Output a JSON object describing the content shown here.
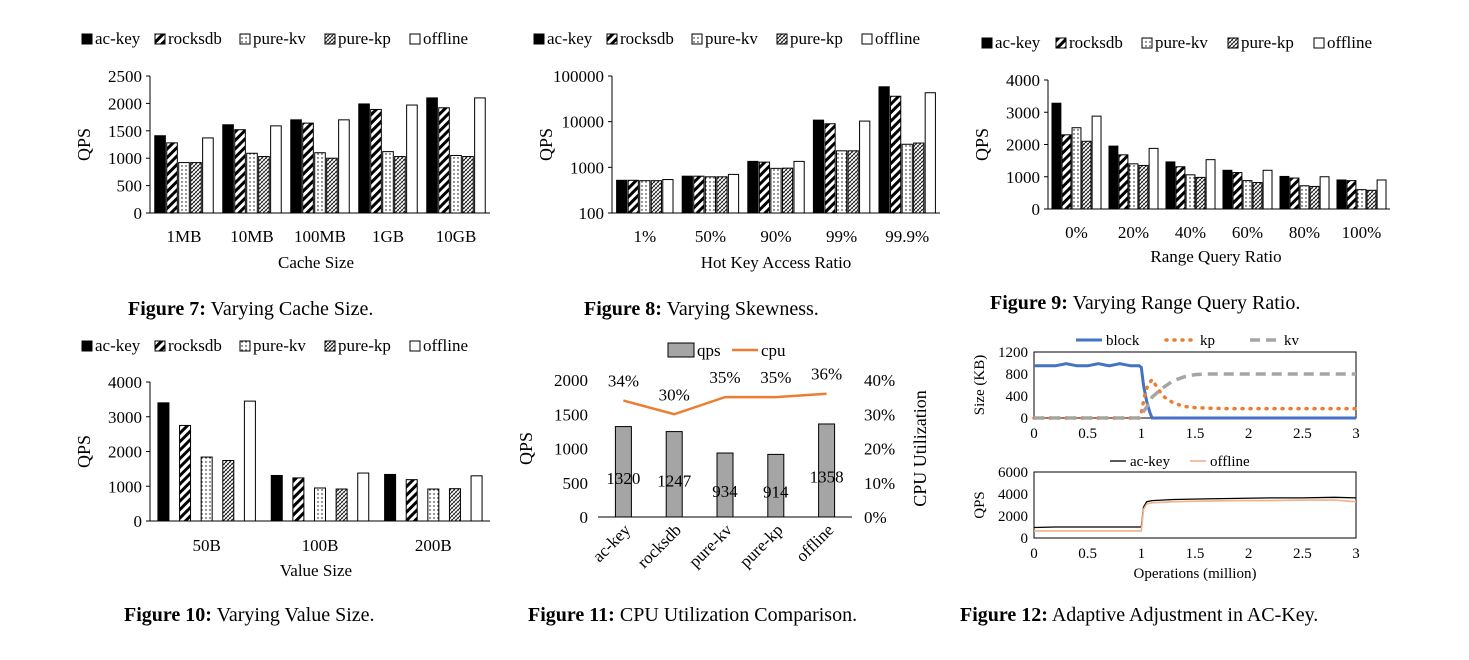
{
  "colors": {
    "black": "#000000",
    "block": "#4472C4",
    "kp": "#ED7D31",
    "kv": "#A5A5A5",
    "qps_bar": "#A5A5A5",
    "cpu": "#ED7D31",
    "offline": "#F4B183"
  },
  "captions": [
    {
      "fig": "Figure 7:",
      "text": " Varying Cache Size."
    },
    {
      "fig": "Figure 8:",
      "text": " Varying Skewness."
    },
    {
      "fig": "Figure 9:",
      "text": " Varying Range Query Ratio."
    },
    {
      "fig": "Figure 10:",
      "text": " Varying Value Size."
    },
    {
      "fig": "Figure 11:",
      "text": " CPU Utilization Comparison."
    },
    {
      "fig": "Figure 12:",
      "text": " Adaptive Adjustment in AC-Key."
    }
  ],
  "chart_data": [
    {
      "id": "fig7",
      "type": "bar",
      "ylabel": "QPS",
      "xlabel": "Cache Size",
      "ylim": [
        0,
        2500
      ],
      "yticks": [
        "0",
        "500",
        "1000",
        "1500",
        "2000",
        "2500"
      ],
      "categories": [
        "1MB",
        "10MB",
        "100MB",
        "1GB",
        "10GB"
      ],
      "series": [
        {
          "name": "ac-key",
          "values": [
            1410,
            1610,
            1700,
            1990,
            2100
          ]
        },
        {
          "name": "rocksdb",
          "values": [
            1280,
            1520,
            1640,
            1890,
            1920
          ]
        },
        {
          "name": "pure-kv",
          "values": [
            920,
            1090,
            1100,
            1120,
            1050
          ]
        },
        {
          "name": "pure-kp",
          "values": [
            920,
            1030,
            1000,
            1030,
            1030
          ]
        },
        {
          "name": "offline",
          "values": [
            1370,
            1590,
            1700,
            1970,
            2100
          ]
        }
      ]
    },
    {
      "id": "fig8",
      "type": "bar",
      "scale": "log",
      "ylabel": "QPS",
      "xlabel": "Hot Key Access Ratio",
      "ylim": [
        100,
        100000
      ],
      "yticks": [
        "100",
        "1000",
        "10000",
        "100000"
      ],
      "categories": [
        "1%",
        "50%",
        "90%",
        "99%",
        "99.9%"
      ],
      "series": [
        {
          "name": "ac-key",
          "values": [
            520,
            640,
            1350,
            10800,
            58000
          ]
        },
        {
          "name": "rocksdb",
          "values": [
            520,
            640,
            1300,
            9000,
            36000
          ]
        },
        {
          "name": "pure-kv",
          "values": [
            510,
            620,
            950,
            2300,
            3200
          ]
        },
        {
          "name": "pure-kp",
          "values": [
            510,
            620,
            960,
            2300,
            3400
          ]
        },
        {
          "name": "offline",
          "values": [
            540,
            700,
            1350,
            10300,
            43000
          ]
        }
      ]
    },
    {
      "id": "fig9",
      "type": "bar",
      "ylabel": "QPS",
      "xlabel": "Range Query Ratio",
      "ylim": [
        0,
        4000
      ],
      "yticks": [
        "0",
        "1000",
        "2000",
        "3000",
        "4000"
      ],
      "categories": [
        "0%",
        "20%",
        "40%",
        "60%",
        "80%",
        "100%"
      ],
      "series": [
        {
          "name": "ac-key",
          "values": [
            3280,
            1950,
            1460,
            1200,
            1010,
            900
          ]
        },
        {
          "name": "rocksdb",
          "values": [
            2300,
            1680,
            1310,
            1130,
            960,
            880
          ]
        },
        {
          "name": "pure-kv",
          "values": [
            2520,
            1400,
            1060,
            880,
            720,
            600
          ]
        },
        {
          "name": "pure-kp",
          "values": [
            2100,
            1350,
            980,
            820,
            700,
            580
          ]
        },
        {
          "name": "offline",
          "values": [
            2880,
            1880,
            1530,
            1200,
            1000,
            900
          ]
        }
      ]
    },
    {
      "id": "fig10",
      "type": "bar",
      "ylabel": "QPS",
      "xlabel": "Value Size",
      "ylim": [
        0,
        4000
      ],
      "yticks": [
        "0",
        "1000",
        "2000",
        "3000",
        "4000"
      ],
      "categories": [
        "50B",
        "100B",
        "200B"
      ],
      "series": [
        {
          "name": "ac-key",
          "values": [
            3400,
            1310,
            1340
          ]
        },
        {
          "name": "rocksdb",
          "values": [
            2750,
            1240,
            1190
          ]
        },
        {
          "name": "pure-kv",
          "values": [
            1840,
            950,
            920
          ]
        },
        {
          "name": "pure-kp",
          "values": [
            1740,
            920,
            930
          ]
        },
        {
          "name": "offline",
          "values": [
            3450,
            1380,
            1300
          ]
        }
      ]
    },
    {
      "id": "fig11",
      "type": "bar",
      "ylabel": "QPS",
      "y2label": "CPU Utilization",
      "ylim": [
        0,
        2000
      ],
      "y2lim": [
        0,
        40
      ],
      "yticks": [
        "0",
        "500",
        "1000",
        "1500",
        "2000"
      ],
      "y2ticks": [
        "0%",
        "10%",
        "20%",
        "30%",
        "40%"
      ],
      "categories": [
        "ac-key",
        "rocksdb",
        "pure-kv",
        "pure-kp",
        "offline"
      ],
      "legend": [
        "qps",
        "cpu"
      ],
      "qps": [
        1320,
        1247,
        934,
        914,
        1358
      ],
      "qps_labels": [
        "1320",
        "1247",
        "934",
        "914",
        "1358"
      ],
      "cpu": [
        34,
        30,
        35,
        35,
        36
      ],
      "cpu_labels": [
        "34%",
        "30%",
        "35%",
        "35%",
        "36%"
      ]
    },
    {
      "id": "fig12a",
      "type": "line",
      "ylabel": "Size (KB)",
      "xlim": [
        0,
        3
      ],
      "ylim": [
        0,
        1200
      ],
      "xticks": [
        "0",
        "0.5",
        "1",
        "1.5",
        "2",
        "2.5",
        "3"
      ],
      "yticks": [
        "0",
        "400",
        "800",
        "1200"
      ],
      "series": [
        {
          "name": "block",
          "x": [
            0,
            0.1,
            0.2,
            0.3,
            0.4,
            0.5,
            0.6,
            0.7,
            0.8,
            0.9,
            0.98,
            1.0,
            1.02,
            1.05,
            1.08,
            1.1,
            1.15,
            1.5,
            2,
            2.5,
            3
          ],
          "y": [
            950,
            950,
            950,
            990,
            950,
            950,
            990,
            950,
            990,
            950,
            950,
            920,
            600,
            300,
            100,
            0,
            0,
            0,
            0,
            0,
            0
          ]
        },
        {
          "name": "kp",
          "x": [
            0,
            0.5,
            0.98,
            1.0,
            1.03,
            1.06,
            1.1,
            1.15,
            1.2,
            1.3,
            1.4,
            1.5,
            1.6,
            1.8,
            2,
            2.5,
            3
          ],
          "y": [
            0,
            0,
            0,
            100,
            400,
            600,
            700,
            550,
            400,
            270,
            210,
            190,
            180,
            170,
            170,
            170,
            170
          ]
        },
        {
          "name": "kv",
          "x": [
            0,
            0.5,
            0.98,
            1.0,
            1.05,
            1.1,
            1.2,
            1.3,
            1.4,
            1.5,
            1.6,
            2,
            2.5,
            3
          ],
          "y": [
            0,
            0,
            0,
            60,
            200,
            380,
            550,
            680,
            750,
            790,
            800,
            800,
            800,
            800
          ]
        }
      ]
    },
    {
      "id": "fig12b",
      "type": "line",
      "ylabel": "QPS",
      "xlabel": "Operations (million)",
      "xlim": [
        0,
        3
      ],
      "ylim": [
        0,
        6000
      ],
      "xticks": [
        "0",
        "0.5",
        "1",
        "1.5",
        "2",
        "2.5",
        "3"
      ],
      "yticks": [
        "0",
        "2000",
        "4000",
        "6000"
      ],
      "series": [
        {
          "name": "ac-key",
          "x": [
            0,
            0.2,
            0.4,
            0.6,
            0.8,
            1.0,
            1.02,
            1.05,
            1.1,
            1.3,
            1.6,
            1.9,
            2.2,
            2.5,
            2.8,
            3.0
          ],
          "y": [
            950,
            1000,
            1000,
            1000,
            1000,
            1000,
            2800,
            3300,
            3400,
            3500,
            3550,
            3600,
            3650,
            3650,
            3700,
            3650
          ]
        },
        {
          "name": "offline",
          "x": [
            0,
            0.2,
            0.4,
            0.6,
            0.8,
            1.0,
            1.02,
            1.05,
            1.1,
            1.3,
            1.6,
            1.9,
            2.2,
            2.5,
            2.8,
            3.0
          ],
          "y": [
            650,
            650,
            650,
            650,
            650,
            650,
            2600,
            3100,
            3200,
            3300,
            3350,
            3400,
            3400,
            3450,
            3450,
            3300
          ]
        }
      ]
    }
  ]
}
